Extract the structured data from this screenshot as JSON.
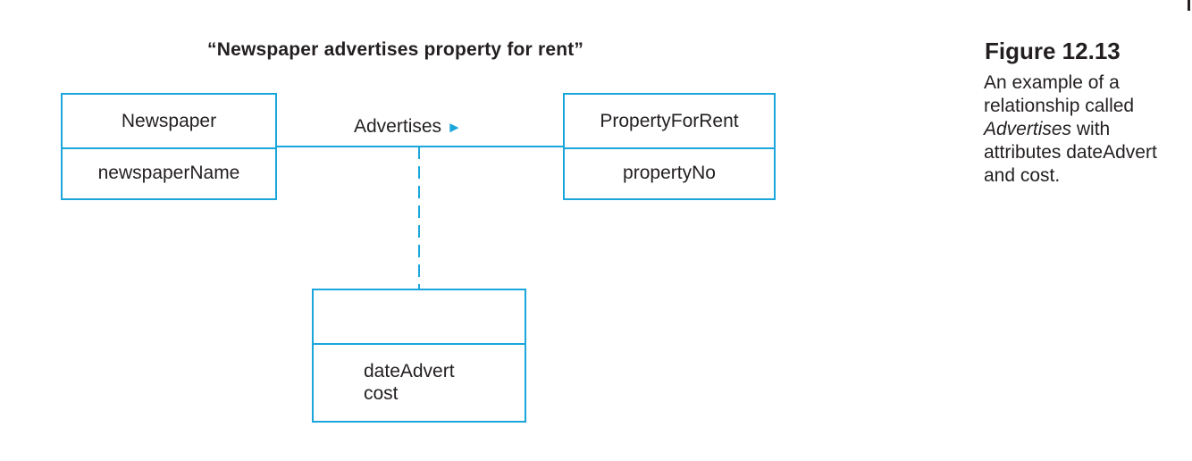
{
  "diagram": {
    "title": "“Newspaper advertises property for rent”",
    "entities": {
      "newspaper": {
        "name": "Newspaper",
        "attributes": [
          "newspaperName"
        ]
      },
      "property": {
        "name": "PropertyForRent",
        "attributes": [
          "propertyNo"
        ]
      },
      "association_class": {
        "name": "",
        "attributes": [
          "dateAdvert",
          "cost"
        ]
      }
    },
    "relationship": {
      "label": "Advertises",
      "direction_glyph": "►"
    },
    "colors": {
      "line": "#1aa6db",
      "text": "#231f20"
    }
  },
  "caption": {
    "figure_label": "Figure 12.13",
    "text_before": "An example of a relationship called ",
    "text_italic": "Advertises",
    "text_after": " with attributes dateAdvert and cost."
  }
}
